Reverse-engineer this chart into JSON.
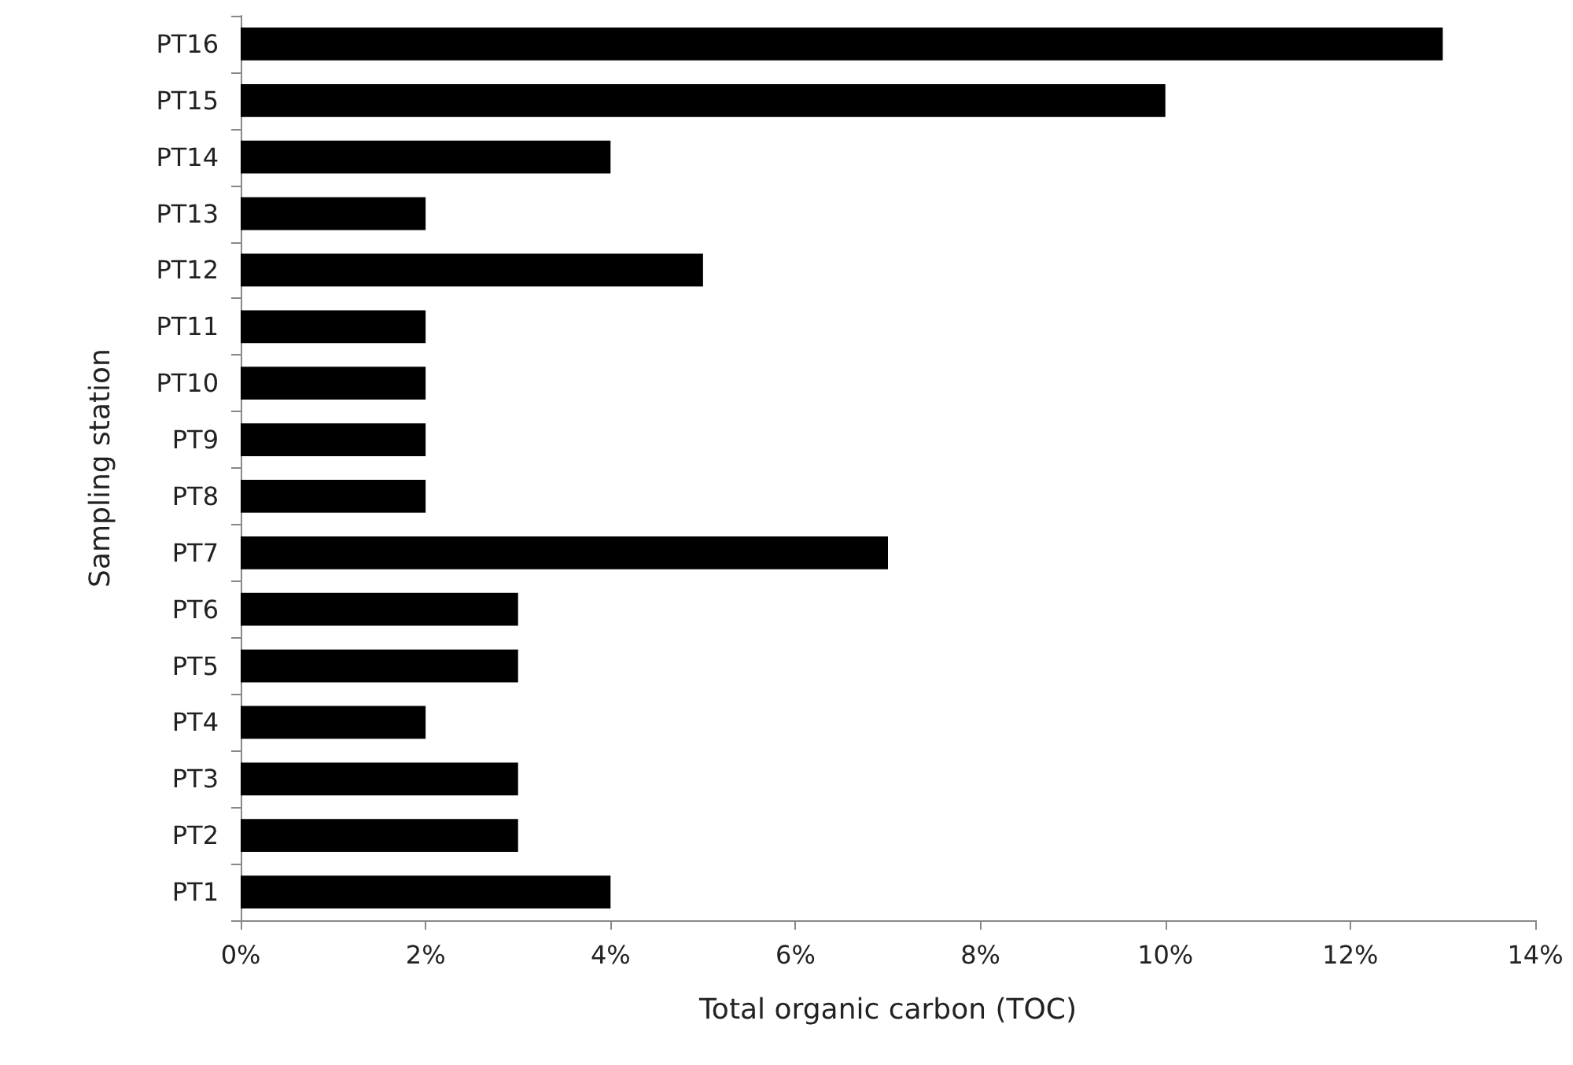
{
  "chart_data": {
    "type": "bar",
    "orientation": "horizontal",
    "xlabel": "Total organic carbon (TOC)",
    "ylabel": "Sampling station",
    "categories": [
      "PT16",
      "PT15",
      "PT14",
      "PT13",
      "PT12",
      "PT11",
      "PT10",
      "PT9",
      "PT8",
      "PT7",
      "PT6",
      "PT5",
      "PT4",
      "PT3",
      "PT2",
      "PT1"
    ],
    "values": [
      13,
      10,
      4,
      2,
      5,
      2,
      2,
      2,
      2,
      7,
      3,
      3,
      2,
      3,
      3,
      4
    ],
    "color": "#000000",
    "xlim": [
      0,
      14
    ],
    "xticks": [
      {
        "value": 0,
        "label": "0%"
      },
      {
        "value": 2,
        "label": "2%"
      },
      {
        "value": 4,
        "label": "4%"
      },
      {
        "value": 6,
        "label": "6%"
      },
      {
        "value": 8,
        "label": "8%"
      },
      {
        "value": 10,
        "label": "10%"
      },
      {
        "value": 12,
        "label": "12%"
      },
      {
        "value": 14,
        "label": "14%"
      }
    ],
    "grid": false
  }
}
